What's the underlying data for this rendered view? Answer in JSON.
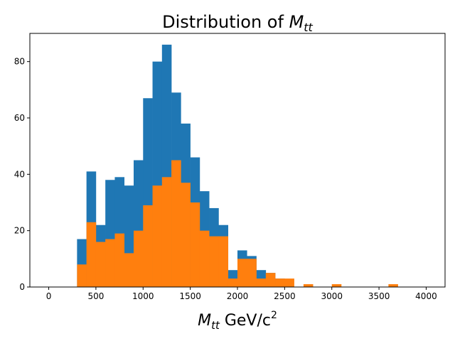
{
  "chart_data": {
    "type": "bar",
    "title": {
      "prefix": "Distribution of ",
      "var_main": "M",
      "var_sub": "tt"
    },
    "xlabel": {
      "var_main": "M",
      "var_sub": "tt",
      "units_main": " GeV/c",
      "units_sup": "2"
    },
    "ylabel": "",
    "xlim": [
      -200,
      4200
    ],
    "ylim": [
      0,
      90
    ],
    "xticks": [
      0,
      500,
      1000,
      1500,
      2000,
      2500,
      3000,
      3500,
      4000
    ],
    "yticks": [
      0,
      20,
      40,
      60,
      80
    ],
    "grid": false,
    "bin_width": 100,
    "bin_edges_start": 300,
    "series": [
      {
        "color": "#1f77b4",
        "values": [
          17,
          41,
          22,
          38,
          39,
          36,
          45,
          67,
          80,
          86,
          69,
          58,
          46,
          34,
          28,
          22,
          6,
          13,
          11,
          6,
          5,
          3,
          0,
          0,
          0,
          0,
          0,
          0,
          0,
          0,
          0,
          0,
          0,
          0,
          0
        ]
      },
      {
        "color": "#ff7f0e",
        "values": [
          8,
          23,
          16,
          17,
          19,
          12,
          20,
          29,
          36,
          39,
          45,
          37,
          30,
          20,
          18,
          18,
          3,
          10,
          10,
          3,
          5,
          3,
          3,
          0,
          1,
          0,
          0,
          1,
          0,
          0,
          0,
          0,
          0,
          1,
          0
        ]
      }
    ]
  }
}
